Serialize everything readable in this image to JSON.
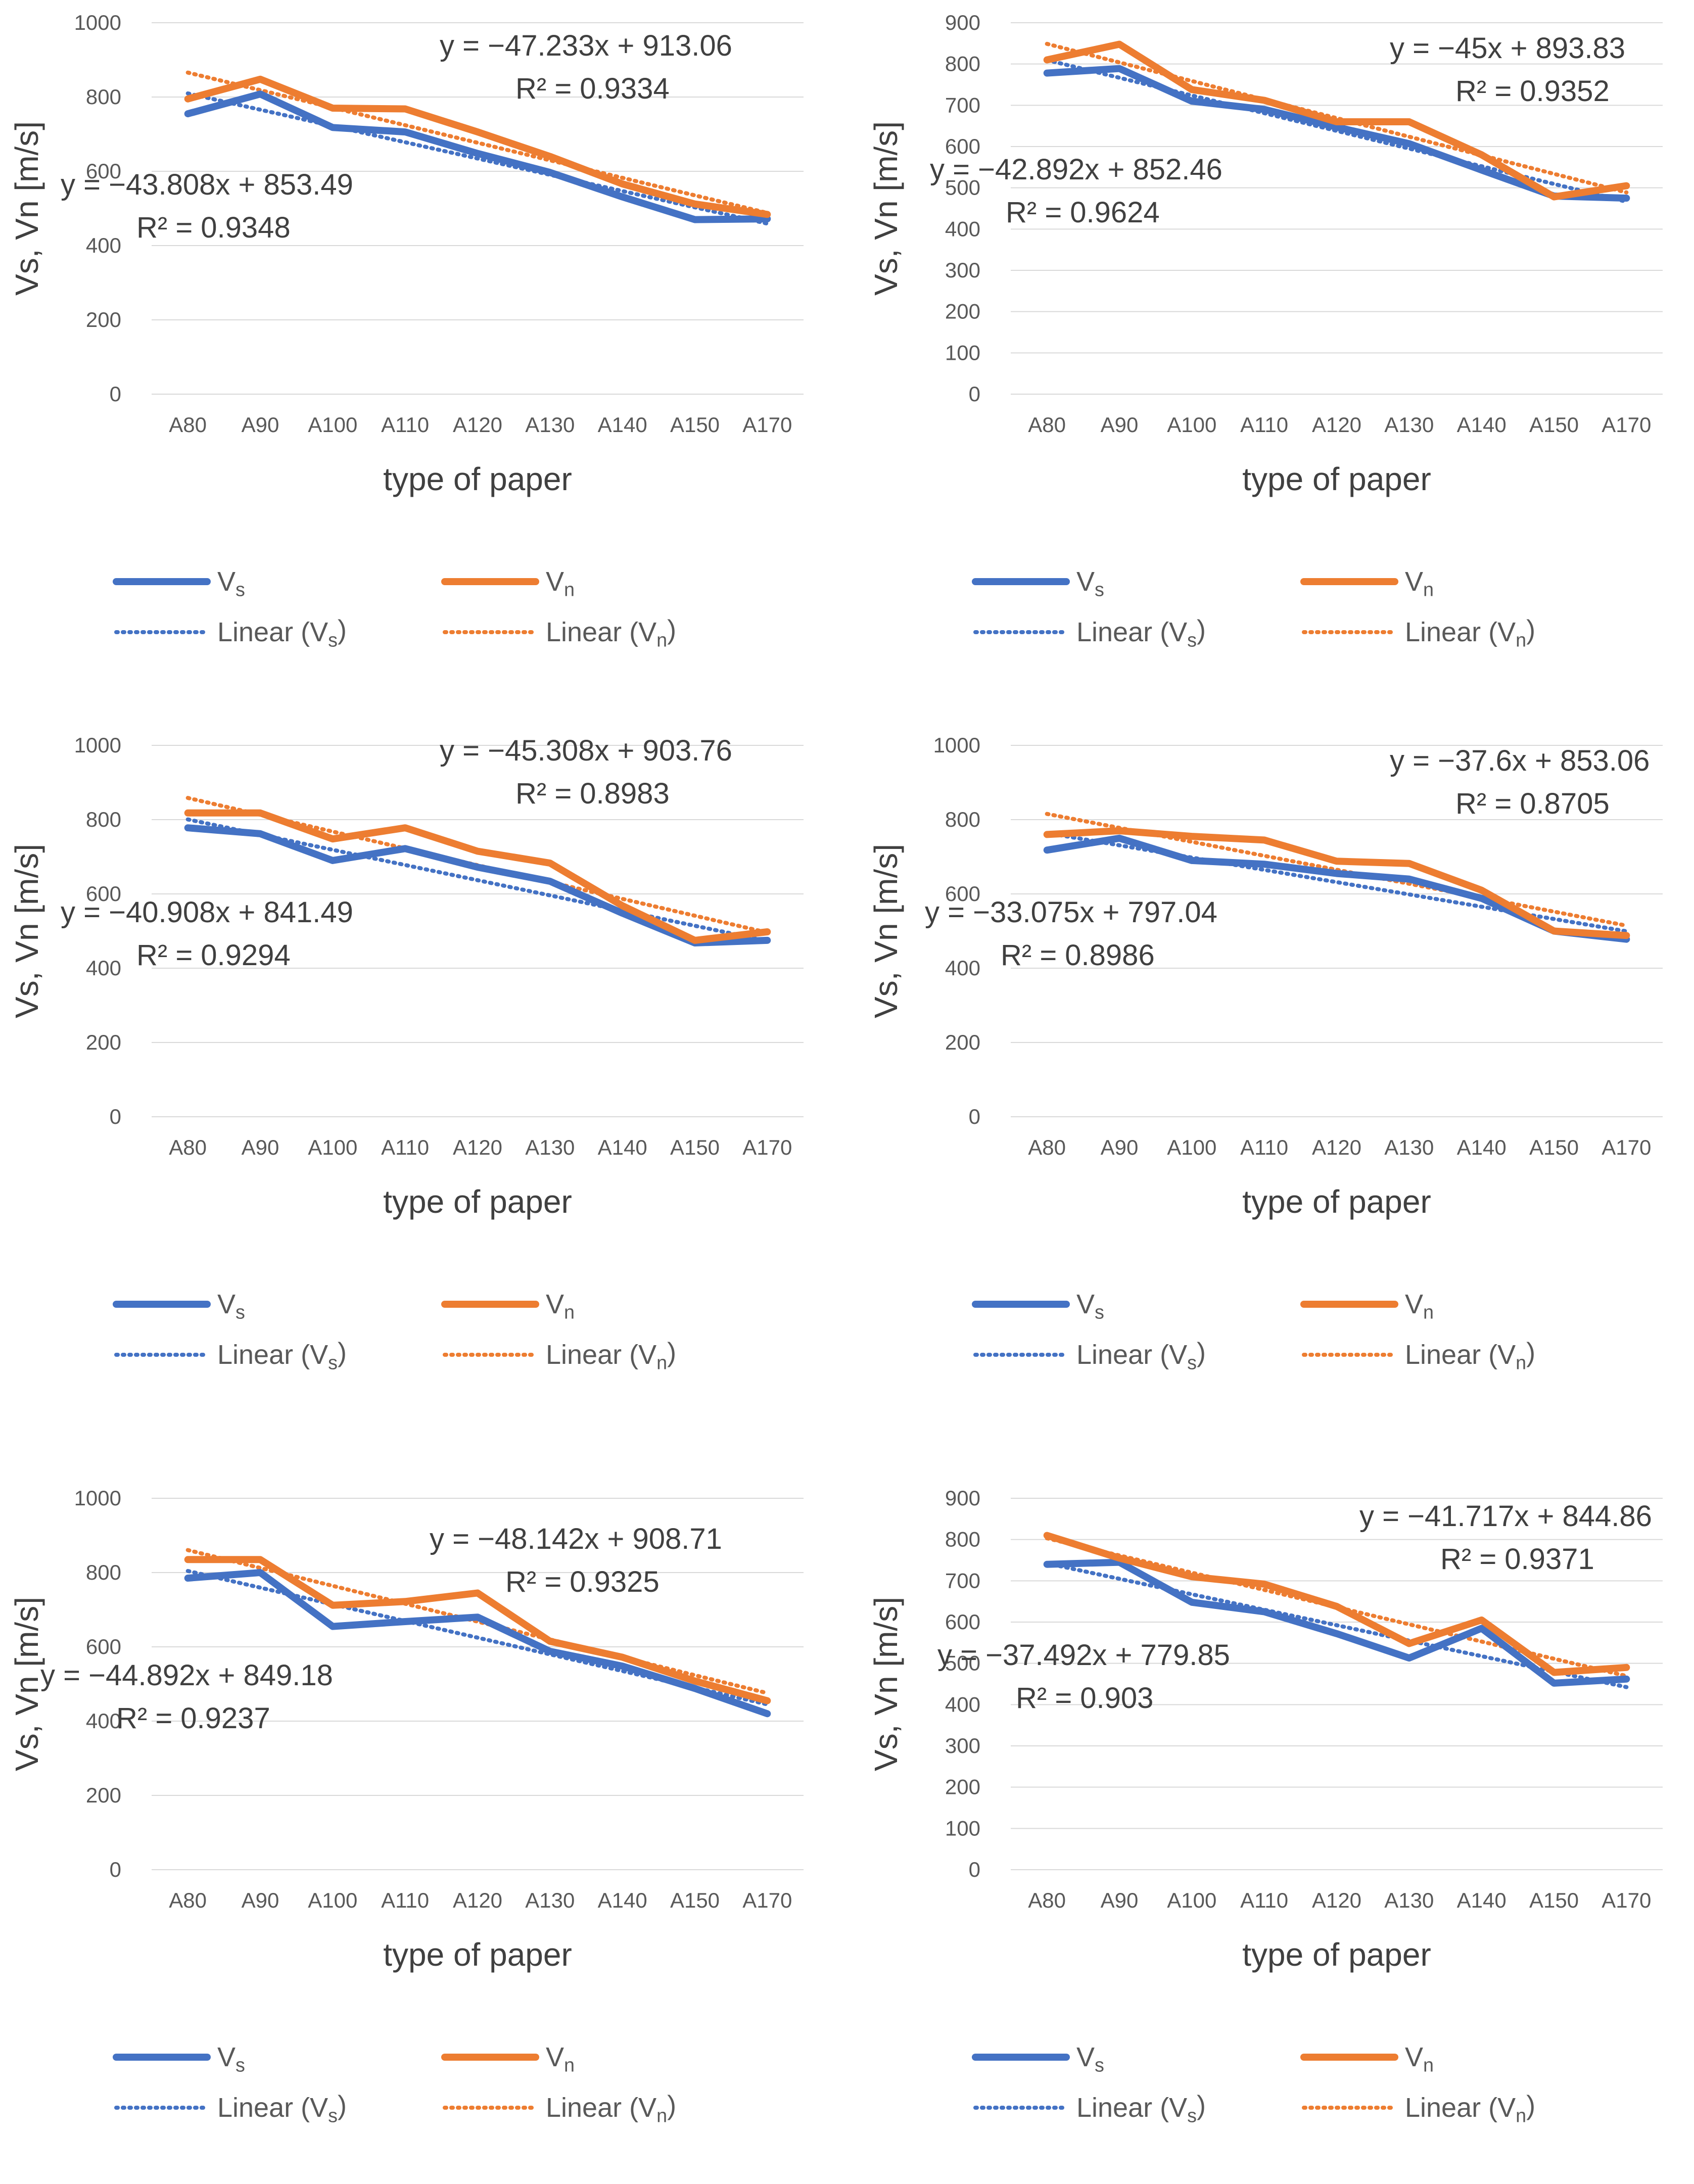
{
  "colors": {
    "vs": "#4472C4",
    "vn": "#ED7D31",
    "grid": "#D9D9D9",
    "text": "#595959"
  },
  "chart_data": [
    {
      "type": "line",
      "categories": [
        "A80",
        "A90",
        "A100",
        "A110",
        "A120",
        "A130",
        "A140",
        "A150",
        "A170"
      ],
      "ylim": [
        0,
        1000
      ],
      "yticks": [
        0,
        200,
        400,
        600,
        800,
        1000
      ],
      "ylabel": "Vs, Vn [m/s]",
      "xlabel": "type of paper",
      "series": [
        {
          "name": "Vs",
          "values": [
            755,
            808,
            718,
            706,
            648,
            597,
            531,
            470,
            472
          ]
        },
        {
          "name": "Vn",
          "values": [
            795,
            848,
            770,
            768,
            706,
            640,
            566,
            512,
            484
          ]
        }
      ],
      "trendlines": [
        {
          "name": "Linear (Vs)",
          "slope": -43.808,
          "intercept": 853.49
        },
        {
          "name": "Linear (Vn)",
          "slope": -47.233,
          "intercept": 913.06
        }
      ],
      "equations": [
        {
          "eq": "y = −43.808x + 853.49",
          "r2": "R² = 0.9348"
        },
        {
          "eq": "y = −47.233x + 913.06",
          "r2": "R² = 0.9334"
        }
      ],
      "legend": [
        "Vs",
        "Vn",
        "Linear (Vs)",
        "Linear (Vn)"
      ]
    },
    {
      "type": "line",
      "categories": [
        "A80",
        "A90",
        "A100",
        "A110",
        "A120",
        "A130",
        "A140",
        "A150",
        "A170"
      ],
      "ylim": [
        0,
        900
      ],
      "yticks": [
        0,
        100,
        200,
        300,
        400,
        500,
        600,
        700,
        800,
        900
      ],
      "ylabel": "Vs, Vn [m/s]",
      "xlabel": "type of paper",
      "series": [
        {
          "name": "Vs",
          "values": [
            778,
            789,
            710,
            690,
            647,
            607,
            543,
            480,
            475
          ]
        },
        {
          "name": "Vn",
          "values": [
            810,
            848,
            738,
            712,
            660,
            660,
            580,
            478,
            505
          ]
        }
      ],
      "trendlines": [
        {
          "name": "Linear (Vs)",
          "slope": -42.892,
          "intercept": 852.46
        },
        {
          "name": "Linear (Vn)",
          "slope": -45,
          "intercept": 893.83
        }
      ],
      "equations": [
        {
          "eq": "y = −42.892x + 852.46",
          "r2": "R² = 0.9624"
        },
        {
          "eq": "y = −45x + 893.83",
          "r2": "R² = 0.9352"
        }
      ],
      "legend": [
        "Vs",
        "Vn",
        "Linear (Vs)",
        "Linear (Vn)"
      ]
    },
    {
      "type": "line",
      "categories": [
        "A80",
        "A90",
        "A100",
        "A110",
        "A120",
        "A130",
        "A140",
        "A150",
        "A170"
      ],
      "ylim": [
        0,
        1000
      ],
      "yticks": [
        0,
        200,
        400,
        600,
        800,
        1000
      ],
      "ylabel": "Vs, Vn [m/s]",
      "xlabel": "type of paper",
      "series": [
        {
          "name": "Vs",
          "values": [
            778,
            762,
            690,
            722,
            672,
            634,
            548,
            468,
            475
          ]
        },
        {
          "name": "Vn",
          "values": [
            818,
            818,
            748,
            778,
            715,
            683,
            568,
            475,
            498
          ]
        }
      ],
      "trendlines": [
        {
          "name": "Linear (Vs)",
          "slope": -40.908,
          "intercept": 841.49
        },
        {
          "name": "Linear (Vn)",
          "slope": -45.308,
          "intercept": 903.76
        }
      ],
      "equations": [
        {
          "eq": "y = −40.908x + 841.49",
          "r2": "R² = 0.9294"
        },
        {
          "eq": "y = −45.308x + 903.76",
          "r2": "R² = 0.8983"
        }
      ],
      "legend": [
        "Vs",
        "Vn",
        "Linear (Vs)",
        "Linear (Vn)"
      ]
    },
    {
      "type": "line",
      "categories": [
        "A80",
        "A90",
        "A100",
        "A110",
        "A120",
        "A130",
        "A140",
        "A150",
        "A170"
      ],
      "ylim": [
        0,
        1000
      ],
      "yticks": [
        0,
        200,
        400,
        600,
        800,
        1000
      ],
      "ylabel": "Vs, Vn [m/s]",
      "xlabel": "type of paper",
      "series": [
        {
          "name": "Vs",
          "values": [
            718,
            750,
            690,
            680,
            655,
            640,
            588,
            500,
            478
          ]
        },
        {
          "name": "Vn",
          "values": [
            760,
            770,
            755,
            745,
            688,
            682,
            610,
            500,
            488
          ]
        }
      ],
      "trendlines": [
        {
          "name": "Linear (Vs)",
          "slope": -33.075,
          "intercept": 797.04
        },
        {
          "name": "Linear (Vn)",
          "slope": -37.6,
          "intercept": 853.06
        }
      ],
      "equations": [
        {
          "eq": "y = −33.075x + 797.04",
          "r2": "R² = 0.8986"
        },
        {
          "eq": "y = −37.6x + 853.06",
          "r2": "R² = 0.8705"
        }
      ],
      "legend": [
        "Vs",
        "Vn",
        "Linear (Vs)",
        "Linear (Vn)"
      ]
    },
    {
      "type": "line",
      "categories": [
        "A80",
        "A90",
        "A100",
        "A110",
        "A120",
        "A130",
        "A140",
        "A150",
        "A170"
      ],
      "ylim": [
        0,
        1000
      ],
      "yticks": [
        0,
        200,
        400,
        600,
        800,
        1000
      ],
      "ylabel": "Vs, Vn [m/s]",
      "xlabel": "type of paper",
      "series": [
        {
          "name": "Vs",
          "values": [
            785,
            800,
            655,
            668,
            680,
            588,
            548,
            488,
            420
          ]
        },
        {
          "name": "Vn",
          "values": [
            835,
            835,
            712,
            722,
            745,
            615,
            572,
            508,
            455
          ]
        }
      ],
      "trendlines": [
        {
          "name": "Linear (Vs)",
          "slope": -44.892,
          "intercept": 849.18
        },
        {
          "name": "Linear (Vn)",
          "slope": -48.142,
          "intercept": 908.71
        }
      ],
      "equations": [
        {
          "eq": "y = −44.892x + 849.18",
          "r2": "R² = 0.9237"
        },
        {
          "eq": "y = −48.142x + 908.71",
          "r2": "R² = 0.9325"
        }
      ],
      "legend": [
        "Vs",
        "Vn",
        "Linear (Vs)",
        "Linear (Vn)"
      ]
    },
    {
      "type": "line",
      "categories": [
        "A80",
        "A90",
        "A100",
        "A110",
        "A120",
        "A130",
        "A140",
        "A150",
        "A170"
      ],
      "ylim": [
        0,
        900
      ],
      "yticks": [
        0,
        100,
        200,
        300,
        400,
        500,
        600,
        700,
        800,
        900
      ],
      "ylabel": "Vs, Vn [m/s]",
      "xlabel": "type of paper",
      "series": [
        {
          "name": "Vs",
          "values": [
            740,
            745,
            648,
            625,
            572,
            513,
            585,
            452,
            462
          ]
        },
        {
          "name": "Vn",
          "values": [
            810,
            755,
            710,
            692,
            638,
            548,
            605,
            478,
            490
          ]
        }
      ],
      "trendlines": [
        {
          "name": "Linear (Vs)",
          "slope": -37.492,
          "intercept": 779.85
        },
        {
          "name": "Linear (Vn)",
          "slope": -41.717,
          "intercept": 844.86
        }
      ],
      "equations": [
        {
          "eq": "y = −37.492x + 779.85",
          "r2": "R² = 0.903"
        },
        {
          "eq": "y = −41.717x + 844.86",
          "r2": "R² = 0.9371"
        }
      ],
      "legend": [
        "Vs",
        "Vn",
        "Linear (Vs)",
        "Linear (Vn)"
      ]
    }
  ]
}
